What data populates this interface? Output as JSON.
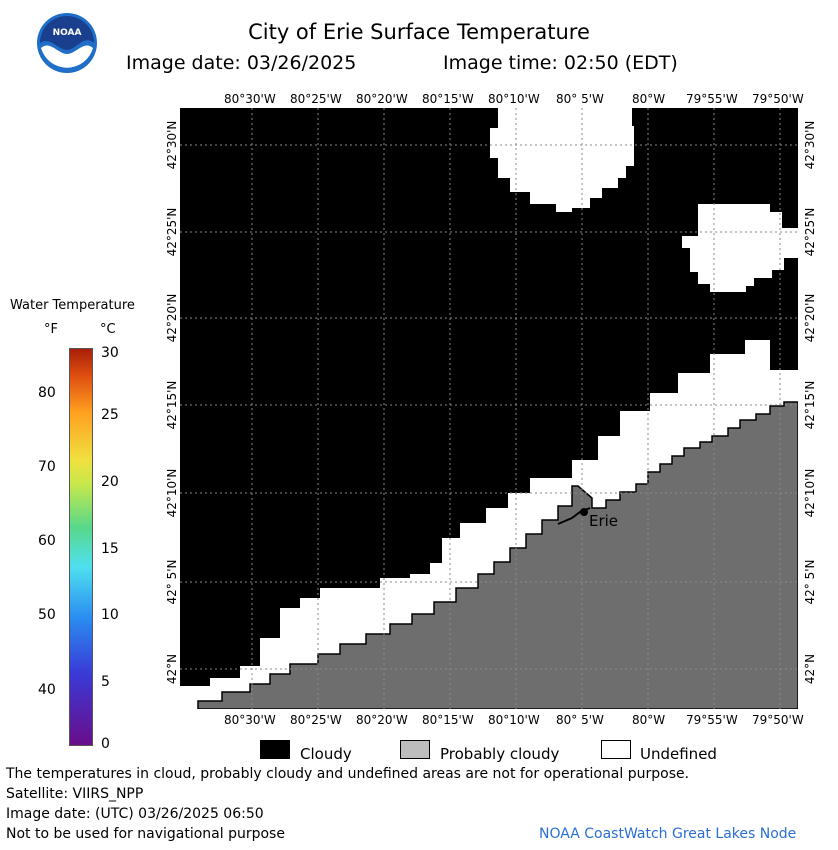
{
  "header": {
    "logo_text": "NOAA",
    "title": "City of Erie Surface Temperature",
    "image_date": "Image date: 03/26/2025",
    "image_time": "Image time: 02:50 (EDT)"
  },
  "map": {
    "lon_labels": [
      "80°30'W",
      "80°25'W",
      "80°20'W",
      "80°15'W",
      "80°10'W",
      "80° 5'W",
      "80°W",
      "79°55'W",
      "79°50'W"
    ],
    "lat_labels": [
      "42°30'N",
      "42°25'N",
      "42°20'N",
      "42°15'N",
      "42°10'N",
      "42° 5'N",
      "42°N"
    ],
    "city_label": "Erie",
    "colors": {
      "cloudy": "#000000",
      "probably_cloudy": "#6e6e6e",
      "undefined": "#ffffff",
      "grid": "#8a8a8a"
    }
  },
  "temperature_scale": {
    "title": "Water Temperature",
    "unit_f": "°F",
    "unit_c": "°C",
    "f_ticks": [
      "80",
      "70",
      "60",
      "50",
      "40"
    ],
    "c_ticks": [
      "30",
      "25",
      "20",
      "15",
      "10",
      "5",
      "0"
    ]
  },
  "legend": {
    "cloudy": "Cloudy",
    "probably_cloudy": "Probably cloudy",
    "undefined": "Undefined"
  },
  "footer": {
    "line1": "The temperatures in cloud, probably cloudy and undefined areas are not for operational purpose.",
    "line2": "Satellite: VIIRS_NPP",
    "line3": "Image date: (UTC) 03/26/2025  06:50",
    "line4": "Not to be used for navigational purpose",
    "credit": "NOAA CoastWatch Great Lakes Node"
  }
}
